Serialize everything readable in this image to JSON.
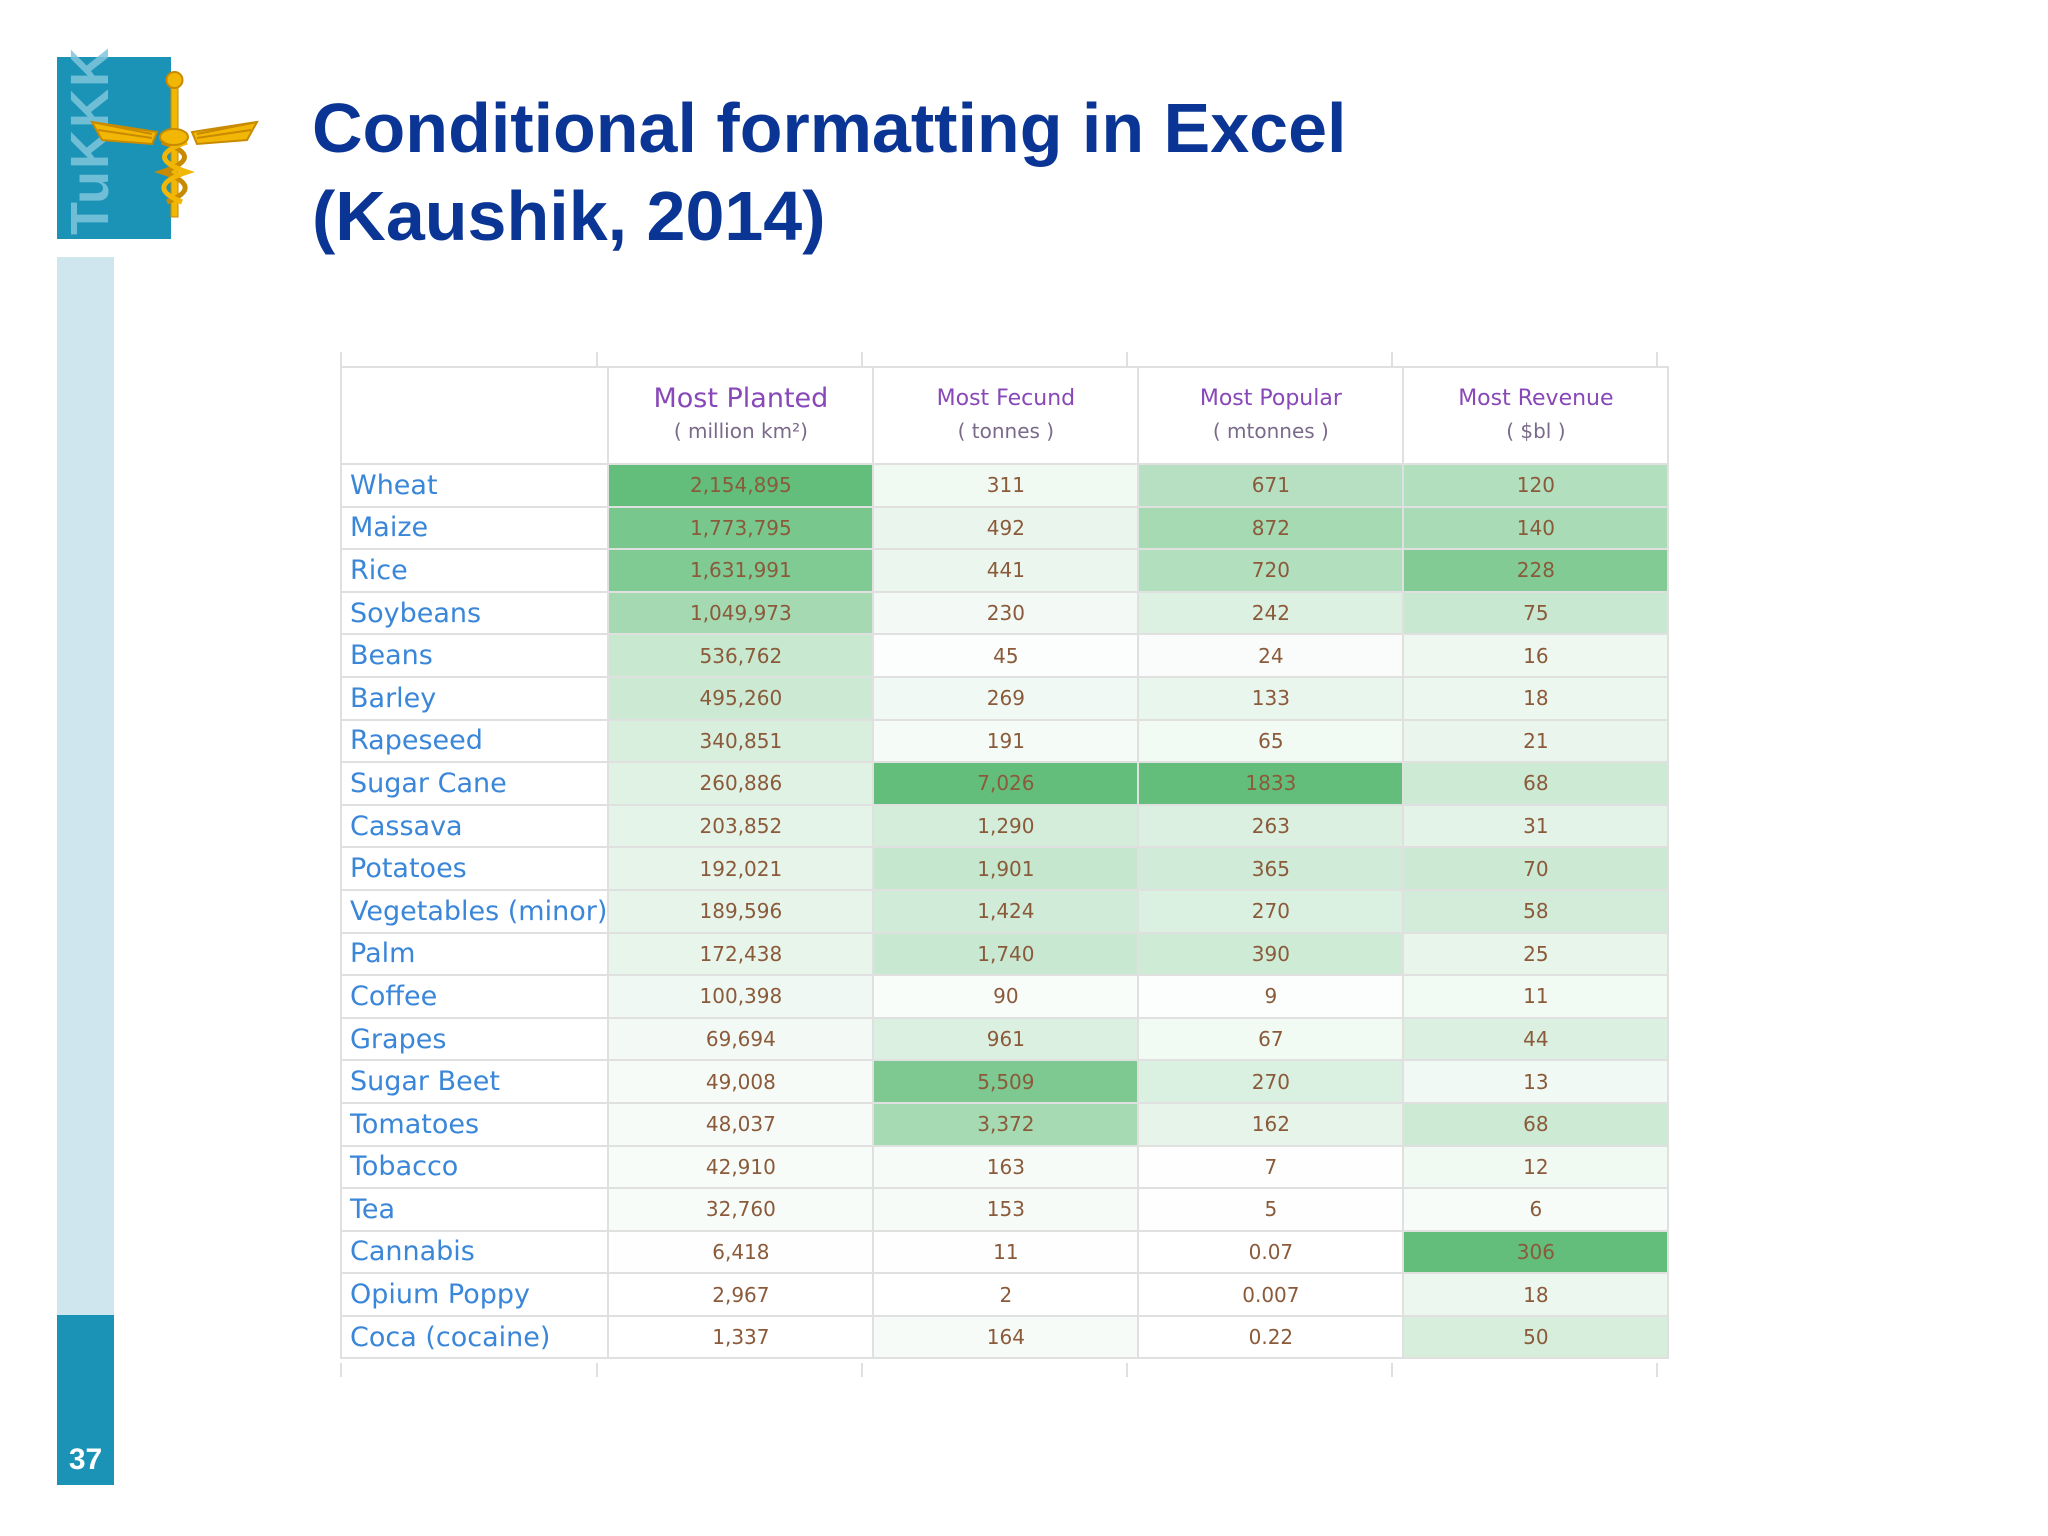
{
  "logo": {
    "text": "TuKKK"
  },
  "slide": {
    "title_line1": "Conditional formatting in Excel",
    "title_line2": "(Kaushik, 2014)",
    "number": "37"
  },
  "table": {
    "headers": [
      {
        "title": "Most Planted",
        "unit": "( million km²)"
      },
      {
        "title": "Most Fecund",
        "unit": "( tonnes )"
      },
      {
        "title": "Most Popular",
        "unit": "( mtonnes )"
      },
      {
        "title": "Most Revenue",
        "unit": "( $bl )"
      }
    ],
    "rows": [
      {
        "name": "Wheat",
        "values": [
          "2,154,895",
          "311",
          "671",
          "120"
        ]
      },
      {
        "name": "Maize",
        "values": [
          "1,773,795",
          "492",
          "872",
          "140"
        ]
      },
      {
        "name": "Rice",
        "values": [
          "1,631,991",
          "441",
          "720",
          "228"
        ]
      },
      {
        "name": "Soybeans",
        "values": [
          "1,049,973",
          "230",
          "242",
          "75"
        ]
      },
      {
        "name": "Beans",
        "values": [
          "536,762",
          "45",
          "24",
          "16"
        ]
      },
      {
        "name": "Barley",
        "values": [
          "495,260",
          "269",
          "133",
          "18"
        ]
      },
      {
        "name": "Rapeseed",
        "values": [
          "340,851",
          "191",
          "65",
          "21"
        ]
      },
      {
        "name": "Sugar Cane",
        "values": [
          "260,886",
          "7,026",
          "1833",
          "68"
        ]
      },
      {
        "name": "Cassava",
        "values": [
          "203,852",
          "1,290",
          "263",
          "31"
        ]
      },
      {
        "name": "Potatoes",
        "values": [
          "192,021",
          "1,901",
          "365",
          "70"
        ]
      },
      {
        "name": "Vegetables (minor)",
        "values": [
          "189,596",
          "1,424",
          "270",
          "58"
        ]
      },
      {
        "name": "Palm",
        "values": [
          "172,438",
          "1,740",
          "390",
          "25"
        ]
      },
      {
        "name": "Coffee",
        "values": [
          "100,398",
          "90",
          "9",
          "11"
        ]
      },
      {
        "name": "Grapes",
        "values": [
          "69,694",
          "961",
          "67",
          "44"
        ]
      },
      {
        "name": "Sugar Beet",
        "values": [
          "49,008",
          "5,509",
          "270",
          "13"
        ]
      },
      {
        "name": "Tomatoes",
        "values": [
          "48,037",
          "3,372",
          "162",
          "68"
        ]
      },
      {
        "name": "Tobacco",
        "values": [
          "42,910",
          "163",
          "7",
          "12"
        ]
      },
      {
        "name": "Tea",
        "values": [
          "32,760",
          "153",
          "5",
          "6"
        ]
      },
      {
        "name": "Cannabis",
        "values": [
          "6,418",
          "11",
          "0.07",
          "306"
        ]
      },
      {
        "name": "Opium Poppy",
        "values": [
          "2,967",
          "2",
          "0.007",
          "18"
        ]
      },
      {
        "name": "Coca (cocaine)",
        "values": [
          "1,337",
          "164",
          "0.22",
          "50"
        ]
      }
    ],
    "colors": {
      "scale_low": "#ffffff",
      "scale_high": "#63be7b"
    },
    "scale_values": [
      [
        2154895,
        1773795,
        1631991,
        1049973,
        536762,
        495260,
        340851,
        260886,
        203852,
        192021,
        189596,
        172438,
        100398,
        69694,
        49008,
        48037,
        42910,
        32760,
        6418,
        2967,
        1337
      ],
      [
        311,
        492,
        441,
        230,
        45,
        269,
        191,
        7026,
        1290,
        1901,
        1424,
        1740,
        90,
        961,
        5509,
        3372,
        163,
        153,
        11,
        2,
        164
      ],
      [
        671,
        872,
        720,
        242,
        24,
        133,
        65,
        1833,
        263,
        365,
        270,
        390,
        9,
        67,
        270,
        162,
        7,
        5,
        0.07,
        0.007,
        0.22
      ],
      [
        120,
        140,
        228,
        75,
        16,
        18,
        21,
        68,
        31,
        70,
        58,
        25,
        11,
        44,
        13,
        68,
        12,
        6,
        306,
        18,
        50
      ]
    ]
  }
}
